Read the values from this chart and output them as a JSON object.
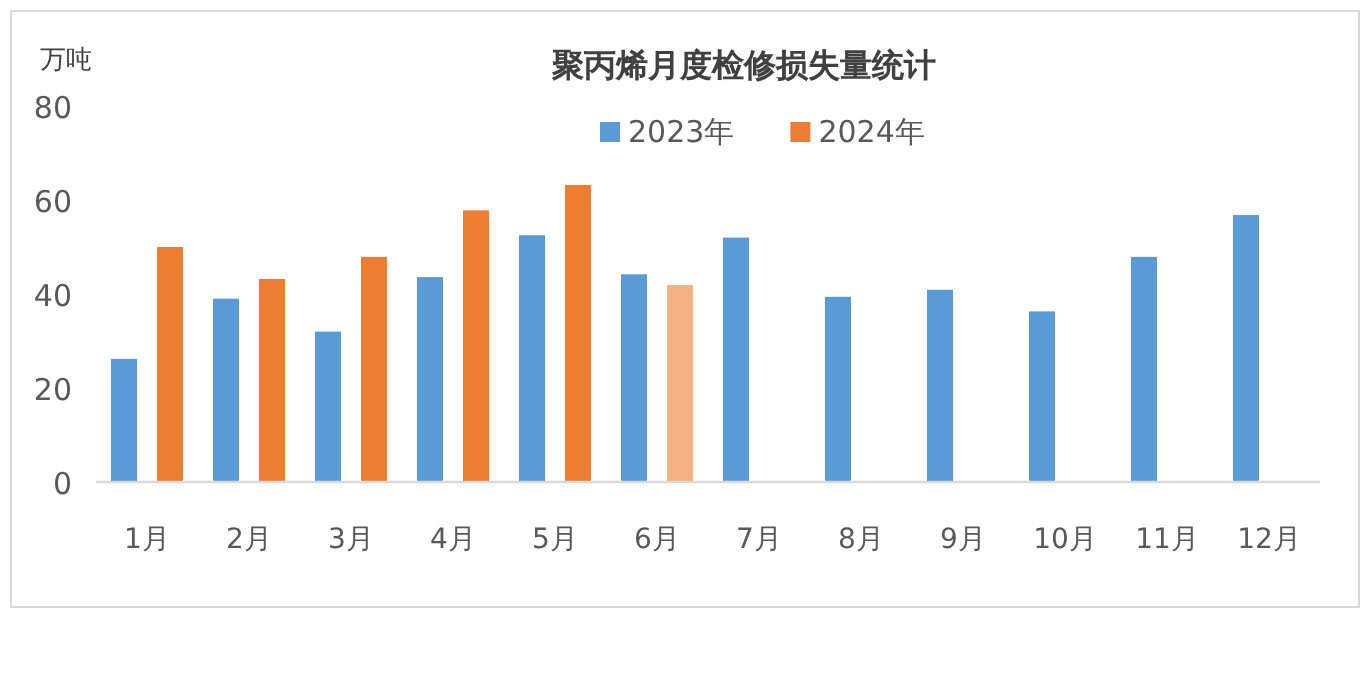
{
  "chart_data": {
    "type": "bar",
    "title": "聚丙烯月度检修损失量统计",
    "ylabel": "万吨",
    "categories": [
      "1月",
      "2月",
      "3月",
      "4月",
      "5月",
      "6月",
      "7月",
      "8月",
      "9月",
      "10月",
      "11月",
      "12月"
    ],
    "series": [
      {
        "name": "2023年",
        "color": "#5b9bd5",
        "values": [
          26.2,
          39,
          32,
          43.6,
          52.5,
          44.2,
          52,
          39.4,
          40.9,
          36.3,
          47.9,
          56.8
        ]
      },
      {
        "name": "2024年",
        "color": "#ed7d31",
        "colors": [
          "#ed7d31",
          "#ed7d31",
          "#ed7d31",
          "#ed7d31",
          "#ed7d31",
          "#f4b183",
          null,
          null,
          null,
          null,
          null,
          null
        ],
        "values": [
          50,
          43.2,
          47.9,
          57.8,
          63.2,
          41.9,
          null,
          null,
          null,
          null,
          null,
          null
        ]
      }
    ],
    "ylim": [
      0,
      80
    ],
    "yticks": [
      0,
      20,
      40,
      60,
      80
    ],
    "legend": "top"
  }
}
